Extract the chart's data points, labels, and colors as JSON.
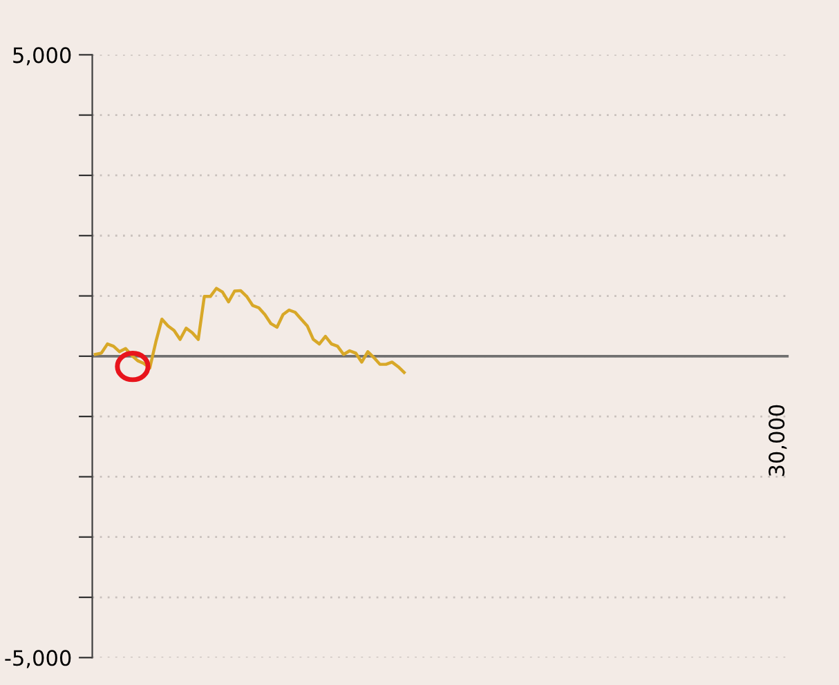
{
  "chart_data": {
    "type": "line",
    "categories": [
      null,
      null,
      null,
      null,
      null,
      null,
      null,
      null,
      null,
      null,
      null,
      null,
      null,
      null,
      null,
      null,
      null,
      null,
      null,
      null,
      null,
      null,
      null,
      null,
      null,
      null,
      null,
      null,
      null,
      null,
      null,
      null,
      null,
      null,
      null,
      null,
      null,
      null,
      null,
      null,
      null,
      null,
      null,
      null,
      null,
      null,
      null,
      null,
      null,
      null,
      null,
      null,
      null,
      null,
      null,
      null,
      null,
      null,
      null,
      null,
      null,
      null,
      null,
      null,
      null,
      null,
      null,
      null,
      null,
      null,
      null,
      null,
      null,
      null,
      null,
      null,
      null,
      null,
      null,
      null,
      null,
      null,
      null,
      null,
      null,
      null,
      null,
      null,
      null,
      null,
      null,
      null,
      null,
      null,
      null,
      null,
      null,
      null,
      null,
      null,
      null,
      null,
      null,
      null,
      null,
      null,
      null,
      null,
      null,
      null,
      null,
      null,
      null,
      null,
      null
    ],
    "ylim": [
      -5000,
      5000
    ],
    "yticks": [
      {
        "value": -5000,
        "label": "-5,000"
      },
      {
        "value": -4000,
        "label": null
      },
      {
        "value": -3000,
        "label": null
      },
      {
        "value": -2000,
        "label": null
      },
      {
        "value": -1000,
        "label": null
      },
      {
        "value": 0,
        "label": null
      },
      {
        "value": 1000,
        "label": null
      },
      {
        "value": 2000,
        "label": null
      },
      {
        "value": 3000,
        "label": null
      },
      {
        "value": 4000,
        "label": null
      },
      {
        "value": 5000,
        "label": "5,000"
      }
    ],
    "grid": "y",
    "marker": "none",
    "line_style": "solid",
    "annotations": [
      "30,000"
    ],
    "ref_lines": [
      {
        "axis": "y",
        "value": 0,
        "color": "#707070",
        "line_style": "solid"
      }
    ],
    "series": [
      {
        "color": "#d8a828",
        "values": [
          30,
          52,
          203,
          165,
          75,
          128,
          15,
          -75,
          -120,
          -195,
          240,
          615,
          503,
          428,
          278,
          465,
          390,
          278,
          991,
          991,
          1126,
          1066,
          901,
          1081,
          1088,
          991,
          841,
          803,
          691,
          540,
          480,
          691,
          766,
          728,
          615,
          503,
          278,
          203,
          330,
          203,
          165,
          30,
          90,
          52,
          -98,
          75,
          -23,
          -135,
          -135,
          -98,
          -173,
          -270,
          null,
          null,
          null,
          null,
          null,
          null,
          null,
          null,
          null,
          null,
          null,
          null,
          null,
          null,
          null,
          null,
          null,
          null,
          null,
          null,
          null,
          null,
          null,
          null,
          null,
          null,
          null,
          null,
          null,
          null,
          null,
          null,
          null,
          null,
          null,
          null,
          null,
          null,
          null,
          null,
          null,
          null,
          null,
          null,
          null,
          null,
          null,
          null,
          null,
          null,
          null,
          null,
          null,
          null,
          null,
          null,
          null,
          null,
          null,
          null,
          null,
          null,
          null
        ]
      }
    ]
  }
}
